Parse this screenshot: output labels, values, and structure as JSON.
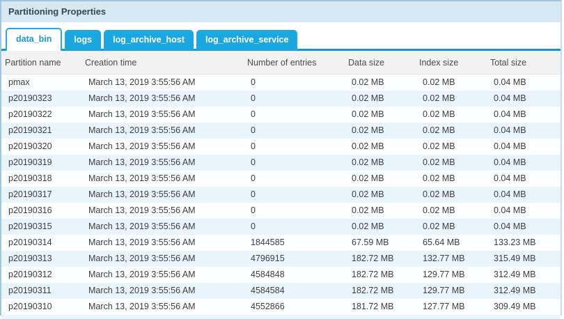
{
  "panel": {
    "title": "Partitioning Properties"
  },
  "tabs": [
    {
      "label": "data_bin",
      "active": true
    },
    {
      "label": "logs",
      "active": false
    },
    {
      "label": "log_archive_host",
      "active": false
    },
    {
      "label": "log_archive_service",
      "active": false
    }
  ],
  "table": {
    "columns": [
      "Partition name",
      "Creation time",
      "Number of entries",
      "Data size",
      "Index size",
      "Total size"
    ],
    "rows": [
      [
        "pmax",
        "March 13, 2019 3:55:56 AM",
        "0",
        "0.02 MB",
        "0.02 MB",
        "0.04 MB"
      ],
      [
        "p20190323",
        "March 13, 2019 3:55:56 AM",
        "0",
        "0.02 MB",
        "0.02 MB",
        "0.04 MB"
      ],
      [
        "p20190322",
        "March 13, 2019 3:55:56 AM",
        "0",
        "0.02 MB",
        "0.02 MB",
        "0.04 MB"
      ],
      [
        "p20190321",
        "March 13, 2019 3:55:56 AM",
        "0",
        "0.02 MB",
        "0.02 MB",
        "0.04 MB"
      ],
      [
        "p20190320",
        "March 13, 2019 3:55:56 AM",
        "0",
        "0.02 MB",
        "0.02 MB",
        "0.04 MB"
      ],
      [
        "p20190319",
        "March 13, 2019 3:55:56 AM",
        "0",
        "0.02 MB",
        "0.02 MB",
        "0.04 MB"
      ],
      [
        "p20190318",
        "March 13, 2019 3:55:56 AM",
        "0",
        "0.02 MB",
        "0.02 MB",
        "0.04 MB"
      ],
      [
        "p20190317",
        "March 13, 2019 3:55:56 AM",
        "0",
        "0.02 MB",
        "0.02 MB",
        "0.04 MB"
      ],
      [
        "p20190316",
        "March 13, 2019 3:55:56 AM",
        "0",
        "0.02 MB",
        "0.02 MB",
        "0.04 MB"
      ],
      [
        "p20190315",
        "March 13, 2019 3:55:56 AM",
        "0",
        "0.02 MB",
        "0.02 MB",
        "0.04 MB"
      ],
      [
        "p20190314",
        "March 13, 2019 3:55:56 AM",
        "1844585",
        "67.59 MB",
        "65.64 MB",
        "133.23 MB"
      ],
      [
        "p20190313",
        "March 13, 2019 3:55:56 AM",
        "4796915",
        "182.72 MB",
        "132.77 MB",
        "315.49 MB"
      ],
      [
        "p20190312",
        "March 13, 2019 3:55:56 AM",
        "4584848",
        "182.72 MB",
        "129.77 MB",
        "312.49 MB"
      ],
      [
        "p20190311",
        "March 13, 2019 3:55:56 AM",
        "4584584",
        "182.72 MB",
        "129.77 MB",
        "312.49 MB"
      ],
      [
        "p20190310",
        "March 13, 2019 3:55:56 AM",
        "4552866",
        "181.72 MB",
        "127.77 MB",
        "309.49 MB"
      ]
    ]
  },
  "colors": {
    "tab_blue": "#1ba7e0",
    "tab_underline": "#0d9bd7",
    "active_tab_text": "#1996d2",
    "titlebar_bg": "#d7e8f3",
    "header_row_bg": "#f2f2f2",
    "alt_row_bg": "#e9f5fc",
    "panel_border": "#9fc6de"
  }
}
